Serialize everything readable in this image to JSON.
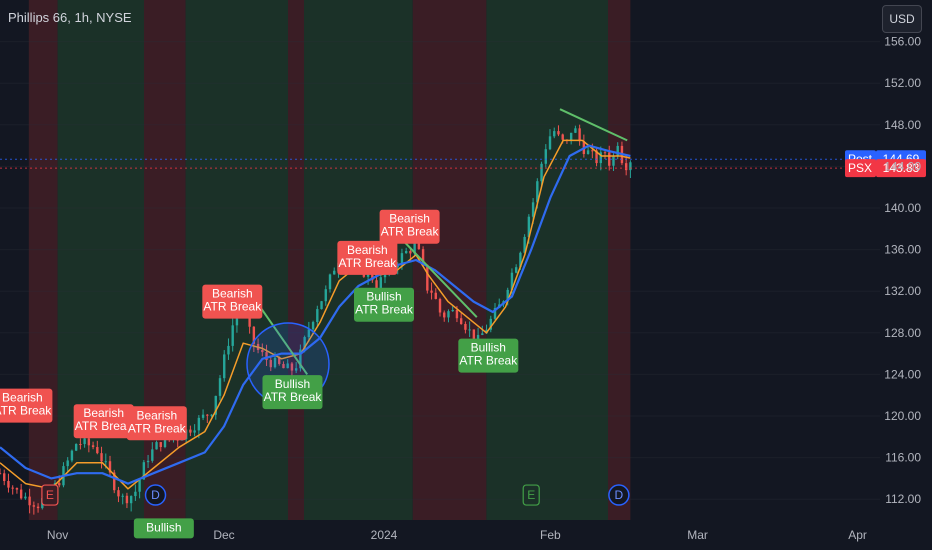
{
  "title": "Phillips 66, 1h, NYSE",
  "currency_button": "USD",
  "chart_data": {
    "type": "candlestick-line",
    "ylim": [
      110,
      160
    ],
    "y_ticks": [
      112,
      116,
      120,
      124,
      128,
      132,
      136,
      140,
      144,
      148,
      152,
      156
    ],
    "y_tick_labels": [
      "112.00",
      "116.00",
      "120.00",
      "124.00",
      "128.00",
      "132.00",
      "136.00",
      "140.00",
      "144.00",
      "148.00",
      "152.00",
      "156.00"
    ],
    "x_ticks": [
      {
        "label": "Nov",
        "t": 0.09
      },
      {
        "label": "Dec",
        "t": 0.35
      },
      {
        "label": "2024",
        "t": 0.6
      },
      {
        "label": "Feb",
        "t": 0.86
      },
      {
        "label": "Mar",
        "t": 1.09
      },
      {
        "label": "Apr",
        "t": 1.34
      }
    ],
    "price_path": [
      [
        0.0,
        114.5
      ],
      [
        0.03,
        112.5
      ],
      [
        0.06,
        111.5
      ],
      [
        0.09,
        113.5
      ],
      [
        0.12,
        117.5
      ],
      [
        0.15,
        117.0
      ],
      [
        0.17,
        114.5
      ],
      [
        0.19,
        112.0
      ],
      [
        0.21,
        112.5
      ],
      [
        0.23,
        116.0
      ],
      [
        0.25,
        117.5
      ],
      [
        0.28,
        118.0
      ],
      [
        0.31,
        119.5
      ],
      [
        0.33,
        120.5
      ],
      [
        0.345,
        124.0
      ],
      [
        0.36,
        128.0
      ],
      [
        0.37,
        130.0
      ],
      [
        0.38,
        130.5
      ],
      [
        0.39,
        128.0
      ],
      [
        0.4,
        126.5
      ],
      [
        0.415,
        125.5
      ],
      [
        0.43,
        125.0
      ],
      [
        0.445,
        124.5
      ],
      [
        0.46,
        124.5
      ],
      [
        0.47,
        126.0
      ],
      [
        0.48,
        128.0
      ],
      [
        0.495,
        130.5
      ],
      [
        0.51,
        132.0
      ],
      [
        0.52,
        134.0
      ],
      [
        0.535,
        136.0
      ],
      [
        0.55,
        134.5
      ],
      [
        0.565,
        134.0
      ],
      [
        0.58,
        133.5
      ],
      [
        0.59,
        132.5
      ],
      [
        0.6,
        133.5
      ],
      [
        0.615,
        134.5
      ],
      [
        0.63,
        135.5
      ],
      [
        0.64,
        136.0
      ],
      [
        0.65,
        136.5
      ],
      [
        0.66,
        134.5
      ],
      [
        0.665,
        132.5
      ],
      [
        0.675,
        132.0
      ],
      [
        0.685,
        130.5
      ],
      [
        0.69,
        129.5
      ],
      [
        0.7,
        130.0
      ],
      [
        0.715,
        130.0
      ],
      [
        0.725,
        129.0
      ],
      [
        0.735,
        128.0
      ],
      [
        0.745,
        127.0
      ],
      [
        0.755,
        128.0
      ],
      [
        0.765,
        129.0
      ],
      [
        0.775,
        130.0
      ],
      [
        0.785,
        131.0
      ],
      [
        0.795,
        133.0
      ],
      [
        0.805,
        134.5
      ],
      [
        0.815,
        136.5
      ],
      [
        0.825,
        139.0
      ],
      [
        0.835,
        141.0
      ],
      [
        0.845,
        144.0
      ],
      [
        0.855,
        146.5
      ],
      [
        0.865,
        147.5
      ],
      [
        0.875,
        146.5
      ],
      [
        0.885,
        146.0
      ],
      [
        0.895,
        148.0
      ],
      [
        0.905,
        146.5
      ],
      [
        0.915,
        145.5
      ],
      [
        0.925,
        145.0
      ],
      [
        0.935,
        144.5
      ],
      [
        0.945,
        145.5
      ],
      [
        0.955,
        144.0
      ],
      [
        0.965,
        146.5
      ],
      [
        0.975,
        144.0
      ],
      [
        0.985,
        144.7
      ]
    ],
    "ema_orange": [
      [
        0.0,
        115.5
      ],
      [
        0.04,
        113.5
      ],
      [
        0.08,
        113.0
      ],
      [
        0.12,
        115.5
      ],
      [
        0.16,
        115.5
      ],
      [
        0.2,
        113.0
      ],
      [
        0.24,
        115.0
      ],
      [
        0.28,
        117.0
      ],
      [
        0.32,
        118.5
      ],
      [
        0.35,
        122.0
      ],
      [
        0.38,
        127.0
      ],
      [
        0.41,
        126.5
      ],
      [
        0.44,
        125.5
      ],
      [
        0.47,
        126.0
      ],
      [
        0.5,
        129.0
      ],
      [
        0.53,
        133.0
      ],
      [
        0.56,
        134.5
      ],
      [
        0.59,
        133.5
      ],
      [
        0.62,
        134.0
      ],
      [
        0.65,
        135.5
      ],
      [
        0.67,
        133.5
      ],
      [
        0.7,
        131.0
      ],
      [
        0.73,
        129.5
      ],
      [
        0.76,
        128.0
      ],
      [
        0.79,
        130.5
      ],
      [
        0.82,
        135.5
      ],
      [
        0.85,
        143.0
      ],
      [
        0.88,
        146.5
      ],
      [
        0.91,
        146.5
      ],
      [
        0.94,
        145.0
      ],
      [
        0.97,
        145.0
      ],
      [
        0.985,
        144.8
      ]
    ],
    "ema_blue": [
      [
        0.0,
        117.0
      ],
      [
        0.04,
        115.0
      ],
      [
        0.08,
        114.0
      ],
      [
        0.12,
        114.5
      ],
      [
        0.16,
        114.5
      ],
      [
        0.2,
        113.5
      ],
      [
        0.24,
        114.5
      ],
      [
        0.28,
        115.5
      ],
      [
        0.32,
        116.5
      ],
      [
        0.35,
        119.0
      ],
      [
        0.38,
        123.0
      ],
      [
        0.41,
        125.5
      ],
      [
        0.44,
        126.0
      ],
      [
        0.47,
        126.0
      ],
      [
        0.5,
        127.5
      ],
      [
        0.53,
        130.5
      ],
      [
        0.56,
        132.5
      ],
      [
        0.59,
        133.5
      ],
      [
        0.62,
        134.5
      ],
      [
        0.65,
        135.0
      ],
      [
        0.68,
        134.0
      ],
      [
        0.71,
        132.5
      ],
      [
        0.74,
        131.0
      ],
      [
        0.77,
        130.0
      ],
      [
        0.8,
        131.5
      ],
      [
        0.83,
        136.0
      ],
      [
        0.86,
        141.0
      ],
      [
        0.89,
        145.0
      ],
      [
        0.92,
        146.0
      ],
      [
        0.95,
        145.5
      ],
      [
        0.985,
        145.0
      ]
    ],
    "shaded_bands": [
      {
        "t0": 0.045,
        "t1": 0.09,
        "tone": "red"
      },
      {
        "t0": 0.09,
        "t1": 0.225,
        "tone": "green"
      },
      {
        "t0": 0.225,
        "t1": 0.29,
        "tone": "red"
      },
      {
        "t0": 0.29,
        "t1": 0.45,
        "tone": "green"
      },
      {
        "t0": 0.45,
        "t1": 0.475,
        "tone": "red"
      },
      {
        "t0": 0.475,
        "t1": 0.645,
        "tone": "green"
      },
      {
        "t0": 0.645,
        "t1": 0.76,
        "tone": "red"
      },
      {
        "t0": 0.76,
        "t1": 0.95,
        "tone": "green"
      },
      {
        "t0": 0.95,
        "t1": 0.985,
        "tone": "red"
      }
    ],
    "trendlines": [
      {
        "t0": 0.395,
        "y0": 131.5,
        "t1": 0.48,
        "y1": 124.0
      },
      {
        "t0": 0.62,
        "y0": 137.5,
        "t1": 0.745,
        "y1": 129.5
      },
      {
        "t0": 0.875,
        "y0": 149.5,
        "t1": 0.98,
        "y1": 146.5
      }
    ],
    "highlight_circle": {
      "t": 0.45,
      "y": 125.0
    },
    "labels": [
      {
        "lines": [
          "Bearish",
          "ATR Break"
        ],
        "kind": "bearish",
        "t": 0.035,
        "y": 121.0
      },
      {
        "lines": [
          "Bearish",
          "ATR Break"
        ],
        "kind": "bearish",
        "t": 0.162,
        "y": 119.5
      },
      {
        "lines": [
          "Bearish",
          "ATR Break"
        ],
        "kind": "bearish",
        "t": 0.245,
        "y": 119.3
      },
      {
        "lines": [
          "Bearish",
          "ATR Break"
        ],
        "kind": "bearish",
        "t": 0.363,
        "y": 131.0
      },
      {
        "lines": [
          "Bearish",
          "ATR Break"
        ],
        "kind": "bearish",
        "t": 0.574,
        "y": 135.2
      },
      {
        "lines": [
          "Bearish",
          "ATR Break"
        ],
        "kind": "bearish",
        "t": 0.64,
        "y": 138.2
      },
      {
        "lines": [
          "Bullish",
          "ATR Break"
        ],
        "kind": "bullish",
        "t": 0.457,
        "y": 122.3
      },
      {
        "lines": [
          "Bullish",
          "ATR Break"
        ],
        "kind": "bullish",
        "t": 0.6,
        "y": 130.7
      },
      {
        "lines": [
          "Bullish",
          "ATR Break"
        ],
        "kind": "bullish",
        "t": 0.763,
        "y": 125.8
      },
      {
        "lines": [
          "Bullish",
          ""
        ],
        "kind": "bullish",
        "t": 0.256,
        "y": 109.2
      }
    ],
    "event_markers": [
      {
        "letter": "E",
        "t": 0.078,
        "y": 112.4
      },
      {
        "letter": "D",
        "t": 0.243,
        "y": 112.4
      },
      {
        "letter": "E",
        "t": 0.83,
        "y": 112.4
      },
      {
        "letter": "D",
        "t": 0.967,
        "y": 112.4
      }
    ],
    "price_tags": [
      {
        "caption": "Post",
        "value": "144.69",
        "y": 144.69,
        "color": "#2962ff"
      },
      {
        "caption": "PSX",
        "value": "143.83",
        "y": 143.83,
        "color": "#f23645"
      }
    ],
    "colors": {
      "background": "#131722",
      "grid": "#2a2e39",
      "axis_text": "#b2b5be",
      "candle_up": "#26a69a",
      "candle_down": "#ef5350",
      "ema_orange": "#f59d2a",
      "ema_blue": "#2f6bf0",
      "trend": "#5fbf6a",
      "bearish_label": "#f05350",
      "bullish_label": "#43a047",
      "band_green": "#1b3128",
      "band_red": "#3a1d25"
    }
  }
}
